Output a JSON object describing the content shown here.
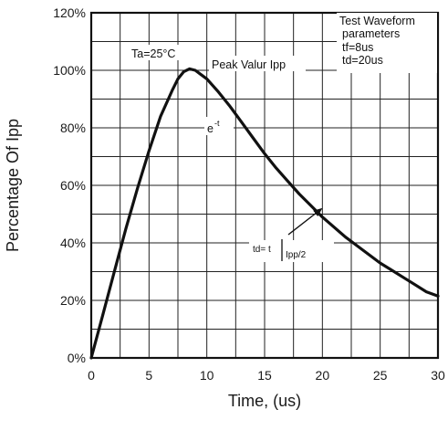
{
  "chart_data": {
    "type": "line",
    "xlabel": "Time, (us)",
    "ylabel": "Percentage Of Ipp",
    "xlim": [
      0,
      30
    ],
    "ylim": [
      0,
      120
    ],
    "x_ticks": [
      "0",
      "5",
      "10",
      "15",
      "20",
      "25",
      "30"
    ],
    "y_ticks": [
      "0%",
      "20%",
      "40%",
      "60%",
      "80%",
      "100%",
      "120%"
    ],
    "grid": true,
    "series": [
      {
        "x": [
          0,
          1,
          2,
          3,
          4,
          5,
          6,
          7,
          7.5,
          8,
          8.5,
          9,
          9.5,
          10,
          11,
          12,
          13,
          14,
          15,
          16,
          17,
          18,
          19,
          20,
          21,
          22,
          23,
          24,
          25,
          26,
          27,
          28,
          29,
          30
        ],
        "y": [
          0,
          15,
          30,
          45,
          59,
          72,
          84,
          93,
          97,
          99.5,
          100.5,
          100,
          98.5,
          97,
          92.5,
          87.5,
          82,
          76.5,
          71,
          66,
          61.5,
          57,
          53,
          49,
          45.5,
          42,
          39,
          36,
          33,
          30.5,
          28,
          25.5,
          23,
          21.5
        ]
      }
    ],
    "annotations": {
      "ambient": "Ta=25°C",
      "peak": "Peak Valur Ipp",
      "decay_base": "e",
      "decay_exp": "-t",
      "td_label": "td= t",
      "td_sub": "Ipp/2",
      "params_title_1": "Test Waveform",
      "params_title_2": "parameters",
      "tf": "tf=8us",
      "td": "td=20us"
    }
  }
}
